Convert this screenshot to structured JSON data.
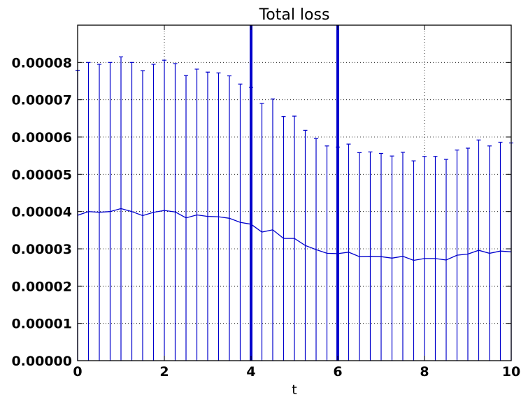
{
  "chart_data": {
    "type": "line",
    "title": "Total loss",
    "xlabel": "t",
    "ylabel": "",
    "xlim": [
      0,
      10
    ],
    "ylim": [
      0,
      9e-05
    ],
    "xticks": [
      0,
      2,
      4,
      6,
      8,
      10
    ],
    "xtick_labels": [
      "0",
      "2",
      "4",
      "6",
      "8",
      "10"
    ],
    "yticks": [
      0,
      1e-05,
      2e-05,
      3e-05,
      4e-05,
      5e-05,
      6e-05,
      7e-05,
      8e-05
    ],
    "ytick_labels": [
      "0.00000",
      "0.00001",
      "0.00002",
      "0.00003",
      "0.00004",
      "0.00005",
      "0.00006",
      "0.00007",
      "0.00008"
    ],
    "grid": true,
    "grid_style": "dotted",
    "vertical_lines": [
      4,
      6
    ],
    "series": [
      {
        "color": "#0000cc",
        "error_bars": "upper caps shown; lower end at 0",
        "x": [
          0,
          0.25,
          0.5,
          0.75,
          1.0,
          1.25,
          1.5,
          1.75,
          2.0,
          2.25,
          2.5,
          2.75,
          3.0,
          3.25,
          3.5,
          3.75,
          4.0,
          4.25,
          4.5,
          4.75,
          5.0,
          5.25,
          5.5,
          5.75,
          6.0,
          6.25,
          6.5,
          6.75,
          7.0,
          7.25,
          7.5,
          7.75,
          8.0,
          8.25,
          8.5,
          8.75,
          9.0,
          9.25,
          9.5,
          9.75,
          10.0
        ],
        "y": [
          3.9e-05,
          4e-05,
          3.98e-05,
          4e-05,
          4.08e-05,
          4e-05,
          3.89e-05,
          3.98e-05,
          4.03e-05,
          3.99e-05,
          3.83e-05,
          3.91e-05,
          3.87e-05,
          3.86e-05,
          3.82e-05,
          3.71e-05,
          3.66e-05,
          3.45e-05,
          3.51e-05,
          3.28e-05,
          3.28e-05,
          3.09e-05,
          2.98e-05,
          2.88e-05,
          2.87e-05,
          2.91e-05,
          2.79e-05,
          2.8e-05,
          2.79e-05,
          2.75e-05,
          2.8e-05,
          2.69e-05,
          2.74e-05,
          2.74e-05,
          2.7e-05,
          2.83e-05,
          2.86e-05,
          2.96e-05,
          2.88e-05,
          2.94e-05,
          2.92e-05
        ],
        "y_upper": [
          7.79e-05,
          8e-05,
          7.95e-05,
          8e-05,
          8.15e-05,
          8e-05,
          7.78e-05,
          7.95e-05,
          8.06e-05,
          7.97e-05,
          7.65e-05,
          7.82e-05,
          7.74e-05,
          7.72e-05,
          7.64e-05,
          7.42e-05,
          7.33e-05,
          6.9e-05,
          7.02e-05,
          6.55e-05,
          6.56e-05,
          6.18e-05,
          5.96e-05,
          5.76e-05,
          5.73e-05,
          5.81e-05,
          5.58e-05,
          5.6e-05,
          5.56e-05,
          5.49e-05,
          5.59e-05,
          5.36e-05,
          5.48e-05,
          5.48e-05,
          5.4e-05,
          5.65e-05,
          5.7e-05,
          5.92e-05,
          5.76e-05,
          5.86e-05,
          5.84e-05
        ]
      }
    ]
  }
}
